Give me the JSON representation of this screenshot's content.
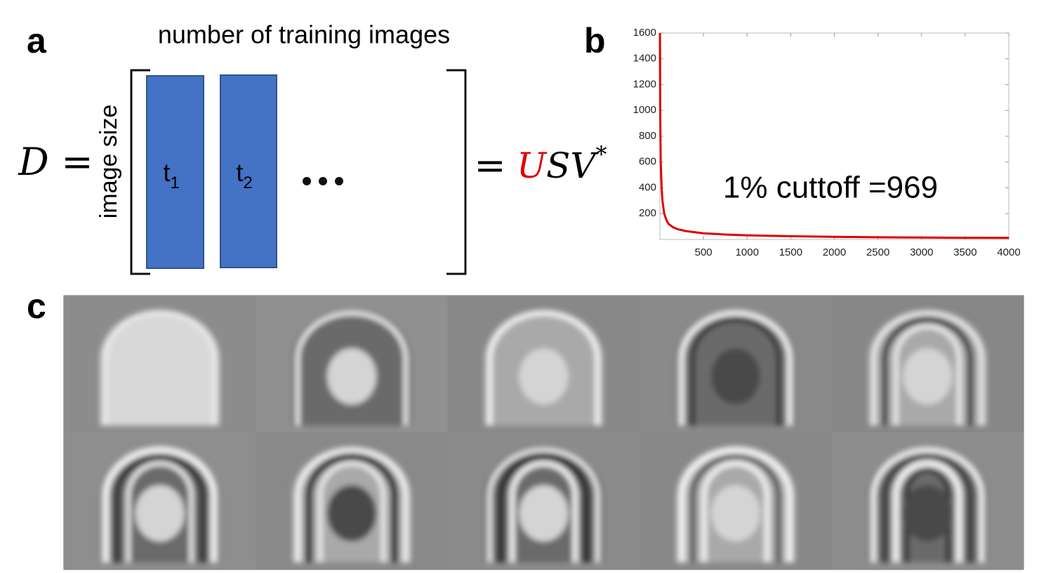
{
  "panel_labels": [
    "a",
    "b",
    "c"
  ],
  "diagram": {
    "top_label": "number of training images",
    "side_label": "image size",
    "lhs": "D",
    "equals": "=",
    "columns": [
      {
        "base": "t",
        "sub": "1"
      },
      {
        "base": "t",
        "sub": "2"
      }
    ],
    "rhs": {
      "u": "U",
      "rest": "SV",
      "sup": "*"
    }
  },
  "chart_data": {
    "type": "line",
    "annotation": "1% cuttoff =969",
    "color": "#e00000",
    "x": [
      1,
      5,
      10,
      20,
      30,
      50,
      75,
      100,
      150,
      200,
      300,
      500,
      750,
      1000,
      1500,
      2000,
      2500,
      3000,
      3500,
      4000
    ],
    "values": [
      1600,
      900,
      600,
      400,
      300,
      200,
      150,
      120,
      95,
      80,
      65,
      48,
      38,
      32,
      25,
      20,
      17,
      15,
      13,
      12
    ],
    "xlim": [
      0,
      4000
    ],
    "ylim": [
      0,
      1600
    ],
    "xticks": [
      500,
      1000,
      1500,
      2000,
      2500,
      3000,
      3500,
      4000
    ],
    "yticks": [
      200,
      400,
      600,
      800,
      1000,
      1200,
      1400,
      1600
    ]
  }
}
